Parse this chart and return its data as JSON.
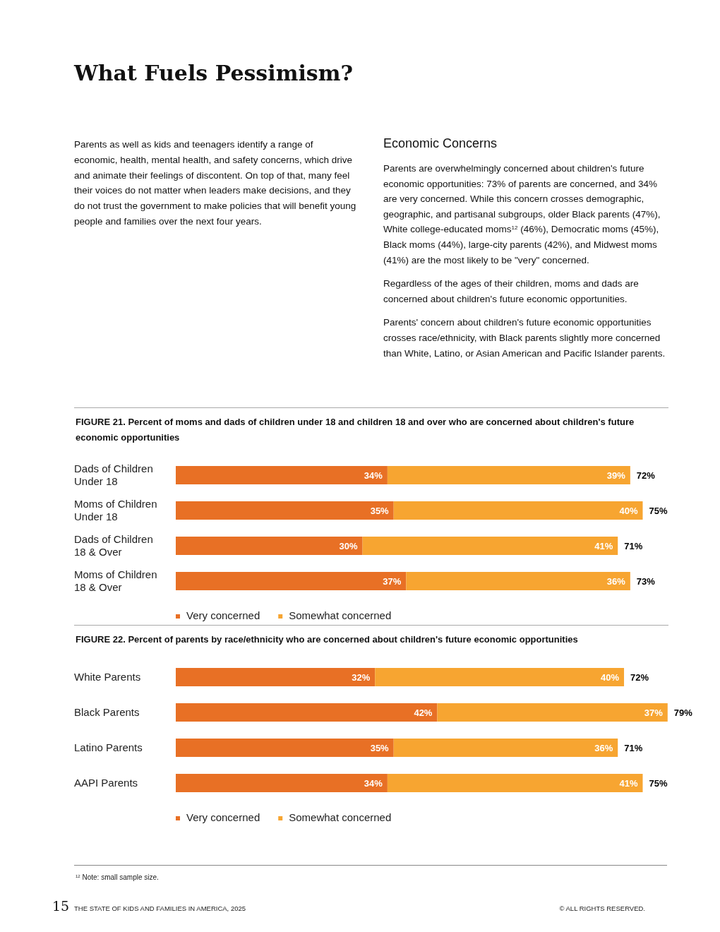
{
  "chart_data": [
    {
      "type": "bar",
      "orientation": "horizontal",
      "stacked": true,
      "legend": "bottom left",
      "title": "FIGURE 21. Percent of moms and dads of children under 18 and children 18 and over who are concerned about children's future economic opportunities",
      "categories": [
        "Dads of Children Under 18",
        "Moms of Children Under 18",
        "Dads of Children 18 & Over",
        "Moms of Children 18 & Over"
      ],
      "series": [
        {
          "name": "Very concerned",
          "color": "#e87025",
          "values": [
            34,
            35,
            30,
            37
          ],
          "value_labels": [
            "34%",
            "35%",
            "30%",
            "37%"
          ]
        },
        {
          "name": "Somewhat concerned",
          "color": "#f7a531",
          "values": [
            39,
            40,
            41,
            36
          ],
          "value_labels": [
            "39%",
            "40%",
            "41%",
            "36%"
          ]
        }
      ],
      "totals": [
        "72%",
        "75%",
        "71%",
        "73%"
      ],
      "annotations": [
        "What Fuels Pessimism?",
        "Parents as well as kids and teenagers identify a range of economic, health, mental health, and safety concerns, which drive and animate their feelings of discontent. On top of that, many feel their voices do not matter when leaders make decisions, and they do not trust the government to make policies that will benefit young people and families over the next four years.",
        "Economic Concerns",
        "Parents are overwhelmingly concerned about children's future economic opportunities: 73% of parents are concerned, and 34% are very concerned. While this concern crosses demographic, geographic, and partisanal subgroups, older Black parents (47%), White college-educated moms$^{12}$ (46%), Democratic moms (45%), Black moms (44%), large-city parents (42%), and Midwest moms (41%) are the most likely to be \"very\" concerned.",
        "Regardless of the ages of their children, moms and dads are concerned about children's future economic opportunities.",
        "Parents' concern about children's future economic opportunities crosses race/ethnicity, with Black parents slightly more concerned than White, Latino, or Asian American and Pacific Islander parents."
      ]
    },
    {
      "type": "bar",
      "orientation": "horizontal",
      "stacked": true,
      "legend": "bottom left",
      "title": "FIGURE 22. Percent of parents by race/ethnicity who are concerned about children's future economic opportunities",
      "categories": [
        "White Parents",
        "Black Parents",
        "Latino Parents",
        "AAPI Parents"
      ],
      "series": [
        {
          "name": "Very concerned",
          "color": "#e87025",
          "values": [
            32,
            42,
            35,
            34
          ],
          "value_labels": [
            "32%",
            "42%",
            "35%",
            "34%"
          ]
        },
        {
          "name": "Somewhat concerned",
          "color": "#f7a531",
          "values": [
            40,
            37,
            36,
            41
          ],
          "value_labels": [
            "40%",
            "37%",
            "36%",
            "41%"
          ]
        }
      ],
      "totals": [
        "72%",
        "79%",
        "71%",
        "75%"
      ],
      "annotations": [
        "$^{12}$ Note: small sample size.",
        "15",
        "THE STATE OF KIDS AND FAMILIES IN AMERICA, 2025",
        "© ALL RIGHTS RESERVED."
      ]
    }
  ]
}
